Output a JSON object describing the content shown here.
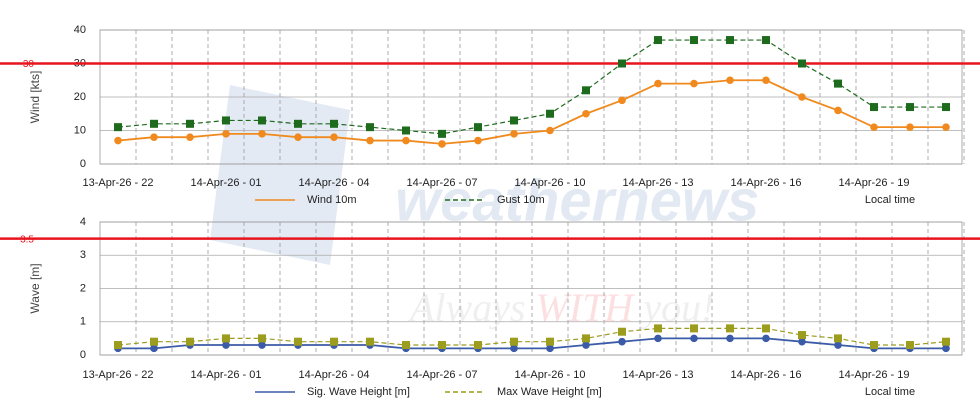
{
  "chart_data": [
    {
      "type": "line",
      "ylabel": "Wind [kts]",
      "x_note": "Local time",
      "categories": [
        "13-Apr-26 - 22",
        null,
        null,
        "14-Apr-26 - 01",
        null,
        null,
        "14-Apr-26 - 04",
        null,
        null,
        "14-Apr-26 - 07",
        null,
        null,
        "14-Apr-26 - 10",
        null,
        null,
        "14-Apr-26 - 13",
        null,
        null,
        "14-Apr-26 - 16",
        null,
        null,
        "14-Apr-26 - 19",
        null,
        null
      ],
      "series": [
        {
          "name": "Wind 10m",
          "color": "#f08a1e",
          "marker": "circle",
          "dashed": false,
          "values": [
            7,
            8,
            8,
            9,
            9,
            8,
            8,
            7,
            7,
            6,
            7,
            9,
            10,
            15,
            19,
            24,
            24,
            25,
            25,
            20,
            16,
            11,
            11,
            11
          ]
        },
        {
          "name": "Gust 10m",
          "color": "#1e6b1e",
          "marker": "square",
          "dashed": true,
          "values": [
            11,
            12,
            12,
            13,
            13,
            12,
            12,
            11,
            10,
            9,
            11,
            13,
            15,
            22,
            30,
            37,
            37,
            37,
            37,
            30,
            24,
            17,
            17,
            17
          ]
        }
      ],
      "threshold": 30,
      "threshold_color": "#e8141e",
      "ylim": [
        0,
        40
      ],
      "yticks": [
        0,
        10,
        20,
        30,
        40
      ],
      "grid": true
    },
    {
      "type": "line",
      "ylabel": "Wave [m]",
      "x_note": "Local time",
      "categories": [
        "13-Apr-26 - 22",
        null,
        null,
        "14-Apr-26 - 01",
        null,
        null,
        "14-Apr-26 - 04",
        null,
        null,
        "14-Apr-26 - 07",
        null,
        null,
        "14-Apr-26 - 10",
        null,
        null,
        "14-Apr-26 - 13",
        null,
        null,
        "14-Apr-26 - 16",
        null,
        null,
        "14-Apr-26 - 19",
        null,
        null
      ],
      "series": [
        {
          "name": "Sig. Wave Height [m]",
          "color": "#3b5ba8",
          "marker": "circle",
          "dashed": false,
          "values": [
            0.2,
            0.2,
            0.3,
            0.3,
            0.3,
            0.3,
            0.3,
            0.3,
            0.2,
            0.2,
            0.2,
            0.2,
            0.2,
            0.3,
            0.4,
            0.5,
            0.5,
            0.5,
            0.5,
            0.4,
            0.3,
            0.2,
            0.2,
            0.2
          ]
        },
        {
          "name": "Max Wave Height [m]",
          "color": "#9c9c1e",
          "marker": "square",
          "dashed": true,
          "values": [
            0.3,
            0.4,
            0.4,
            0.5,
            0.5,
            0.4,
            0.4,
            0.4,
            0.3,
            0.3,
            0.3,
            0.4,
            0.4,
            0.5,
            0.7,
            0.8,
            0.8,
            0.8,
            0.8,
            0.6,
            0.5,
            0.3,
            0.3,
            0.4
          ]
        }
      ],
      "threshold": 3.5,
      "threshold_color": "#e8141e",
      "ylim": [
        0,
        4
      ],
      "yticks": [
        0,
        1,
        2,
        3,
        4
      ],
      "grid": true
    }
  ],
  "watermark": {
    "brand": "weathernews",
    "slogan": [
      "Always",
      "WITH",
      "you!"
    ]
  }
}
